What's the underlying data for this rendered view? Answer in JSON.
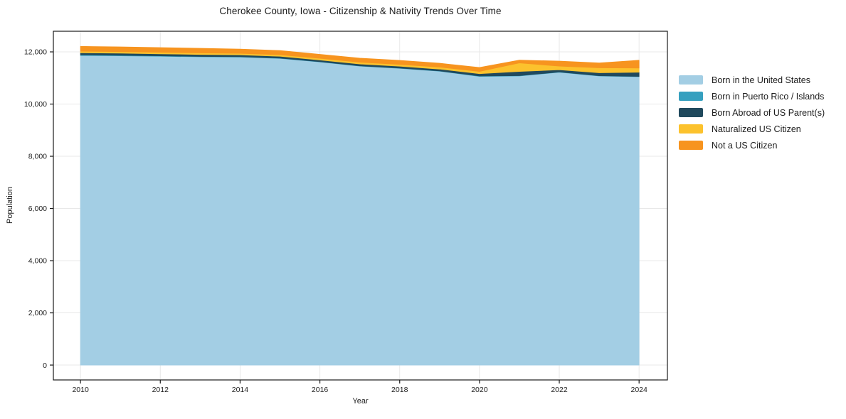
{
  "chart_data": {
    "type": "area",
    "title": "Cherokee County, Iowa - Citizenship & Nativity Trends Over Time",
    "xlabel": "Year",
    "ylabel": "Population",
    "x": [
      2010,
      2011,
      2012,
      2013,
      2014,
      2015,
      2016,
      2017,
      2018,
      2019,
      2020,
      2021,
      2022,
      2023,
      2024
    ],
    "series": [
      {
        "name": "Born in the United States",
        "color": "#a3cee4",
        "values": [
          11860,
          11850,
          11830,
          11810,
          11800,
          11750,
          11615,
          11455,
          11370,
          11260,
          11060,
          11075,
          11220,
          11075,
          11050
        ]
      },
      {
        "name": "Born in Puerto Rico / Islands",
        "color": "#36a0bf",
        "values": [
          25,
          20,
          20,
          15,
          15,
          10,
          10,
          10,
          10,
          10,
          15,
          15,
          10,
          10,
          10
        ]
      },
      {
        "name": "Born Abroad of US Parent(s)",
        "color": "#20495d",
        "values": [
          80,
          80,
          75,
          75,
          70,
          70,
          65,
          70,
          70,
          70,
          90,
          160,
          85,
          115,
          160
        ]
      },
      {
        "name": "Naturalized US Citizen",
        "color": "#fcc22d",
        "values": [
          60,
          60,
          60,
          60,
          60,
          60,
          65,
          70,
          70,
          75,
          85,
          325,
          140,
          190,
          160
        ]
      },
      {
        "name": "Not a US Citizen",
        "color": "#f7941f",
        "values": [
          185,
          180,
          180,
          175,
          160,
          160,
          150,
          155,
          155,
          150,
          150,
          110,
          190,
          185,
          300
        ]
      }
    ],
    "stacked": true,
    "xticks": [
      2010,
      2012,
      2014,
      2016,
      2018,
      2020,
      2022,
      2024
    ],
    "xtick_labels": [
      "2010",
      "2012",
      "2014",
      "2016",
      "2018",
      "2020",
      "2022",
      "2024"
    ],
    "yticks": [
      0,
      2000,
      4000,
      6000,
      8000,
      10000,
      12000
    ],
    "ytick_labels": [
      "0",
      "2,000",
      "4,000",
      "6,000",
      "8,000",
      "10,000",
      "12,000"
    ],
    "xlim": [
      2009.32,
      2024.71
    ],
    "ylim": [
      -570,
      12790
    ],
    "grid": true,
    "legend_position": "right",
    "colors": {
      "background": "#ffffff",
      "grid": "#e8e8e8",
      "spine": "#1a1a1a",
      "text": "#1c1c1c"
    }
  }
}
